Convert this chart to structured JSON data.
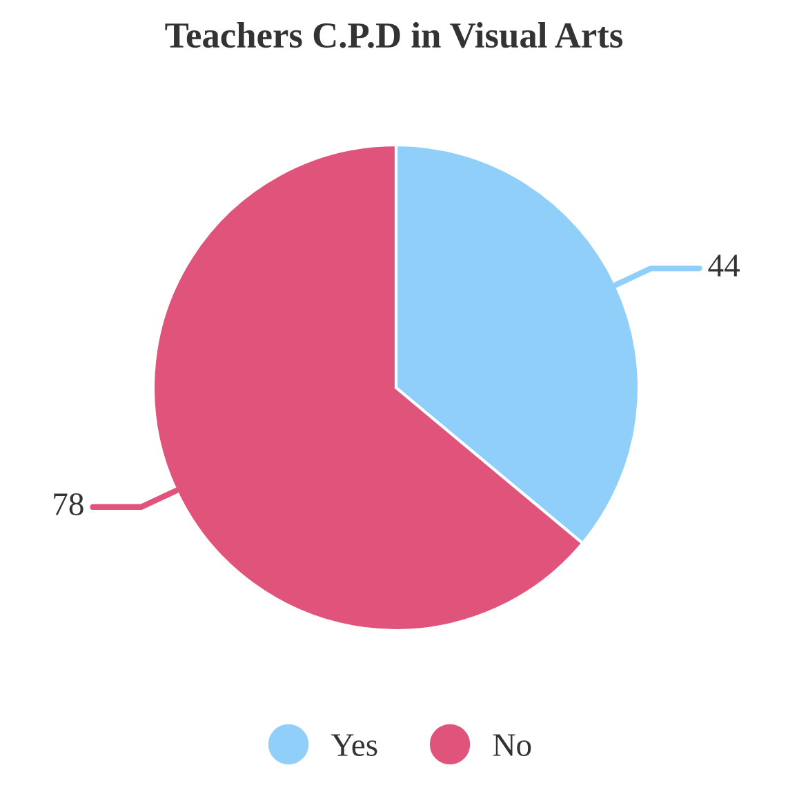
{
  "chart_data": {
    "type": "pie",
    "title": "Teachers C.P.D in Visual Arts",
    "categories": [
      "Yes",
      "No"
    ],
    "values": [
      44,
      78
    ],
    "colors": [
      "#90cffa",
      "#e0547c"
    ],
    "data_labels": true,
    "legend": "bottom"
  }
}
